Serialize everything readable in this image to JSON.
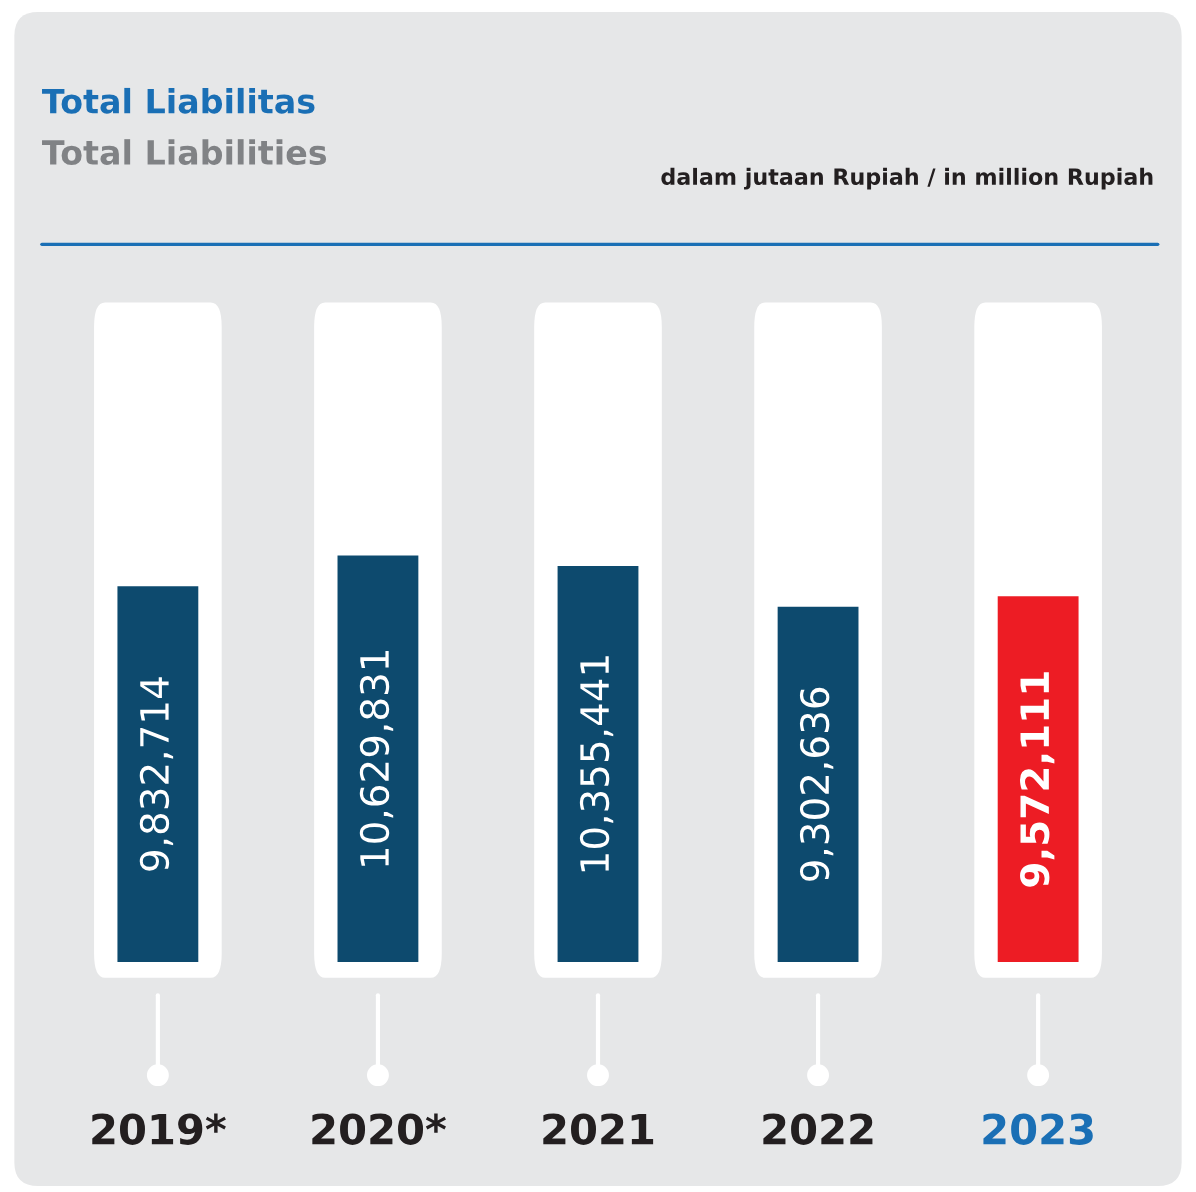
{
  "chart_data": {
    "type": "bar",
    "title": "Total Liabilitas",
    "subtitle": "Total Liabilities",
    "annotations": [
      "dalam jutaan Rupiah / in million Rupiah"
    ],
    "categories": [
      "2019*",
      "2020*",
      "2021",
      "2022",
      "2023"
    ],
    "values": [
      9832714,
      10629831,
      10355441,
      9302636,
      9572111
    ],
    "colors": [
      "#0d4a6e",
      "#0d4a6e",
      "#0d4a6e",
      "#0d4a6e",
      "#ed1c24"
    ],
    "value_labels": [
      "9,832,714",
      "10,629,831",
      "10,355,441",
      "9,302,636",
      "9,572,111"
    ]
  }
}
